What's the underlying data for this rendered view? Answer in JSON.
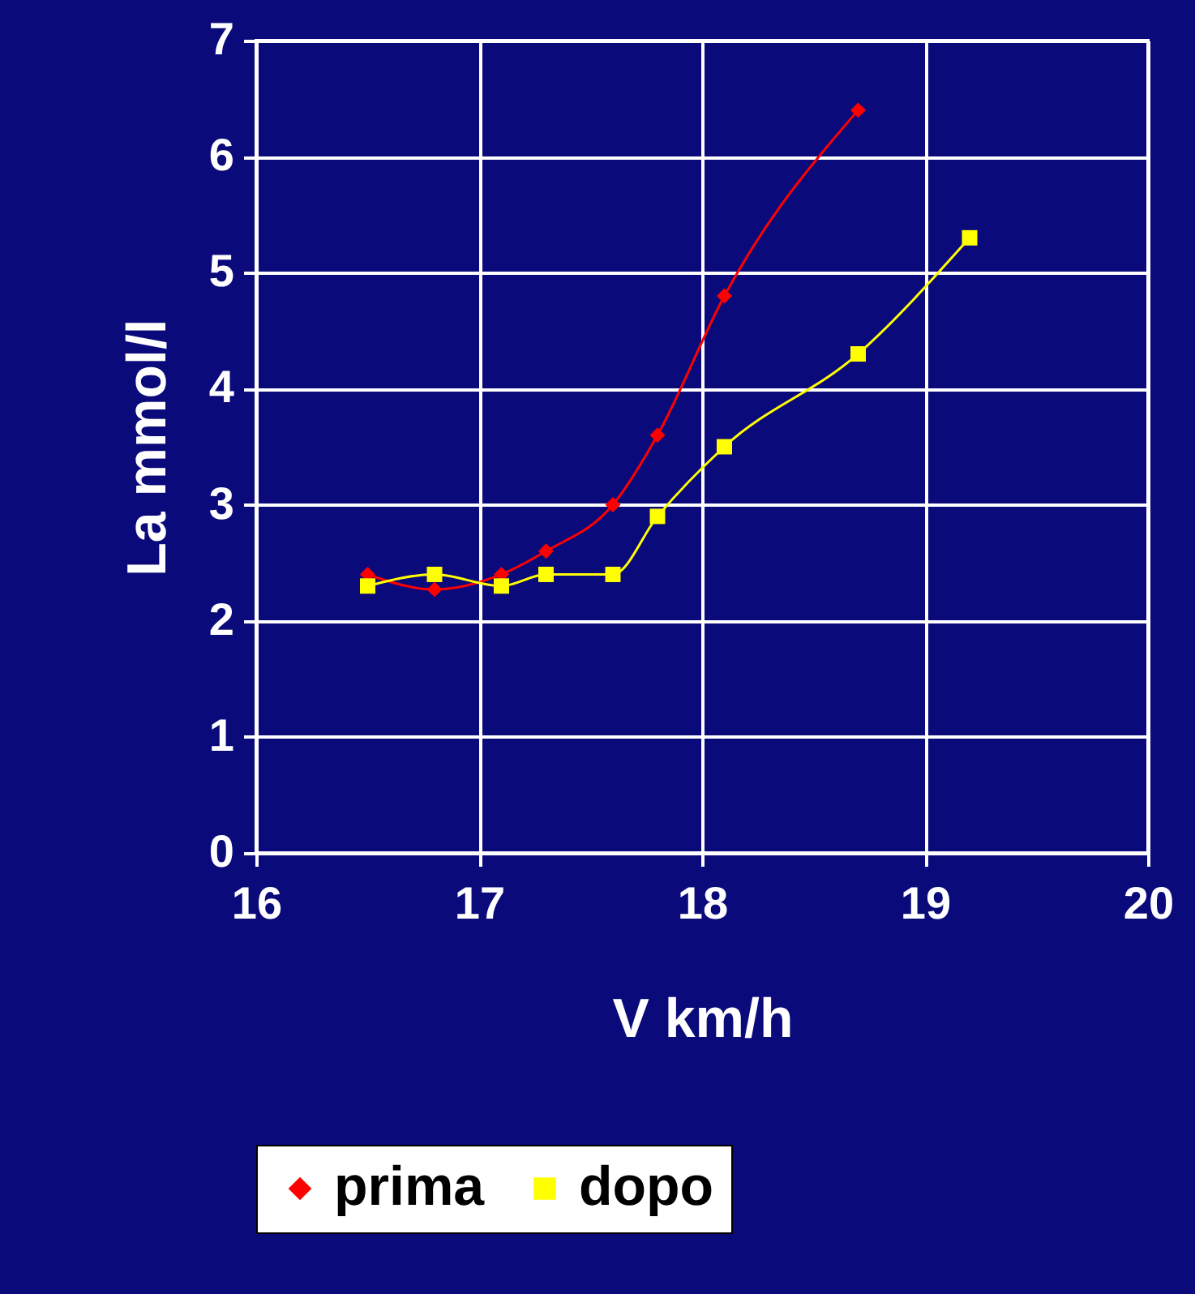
{
  "chart_data": {
    "type": "line",
    "xlabel": "V km/h",
    "ylabel": "La mmol/l",
    "xlim": [
      16,
      20
    ],
    "ylim": [
      0,
      7
    ],
    "xticks": [
      16,
      17,
      18,
      19,
      20
    ],
    "yticks": [
      0,
      1,
      2,
      3,
      4,
      5,
      6,
      7
    ],
    "grid": true,
    "legend": "bottom",
    "line_style": "solid",
    "series": [
      {
        "name": "prima",
        "color": "#ff0000",
        "marker": "diamond",
        "x": [
          16.5,
          16.8,
          17.1,
          17.3,
          17.6,
          17.8,
          18.1,
          18.7
        ],
        "values": [
          2.4,
          2.27,
          2.4,
          2.6,
          3.0,
          3.6,
          4.8,
          6.4
        ]
      },
      {
        "name": "dopo",
        "color": "#ffff00",
        "marker": "square",
        "x": [
          16.5,
          16.8,
          17.1,
          17.3,
          17.6,
          17.8,
          18.1,
          18.7,
          19.2
        ],
        "values": [
          2.3,
          2.4,
          2.3,
          2.4,
          2.4,
          2.9,
          3.5,
          4.3,
          5.3
        ]
      }
    ]
  }
}
